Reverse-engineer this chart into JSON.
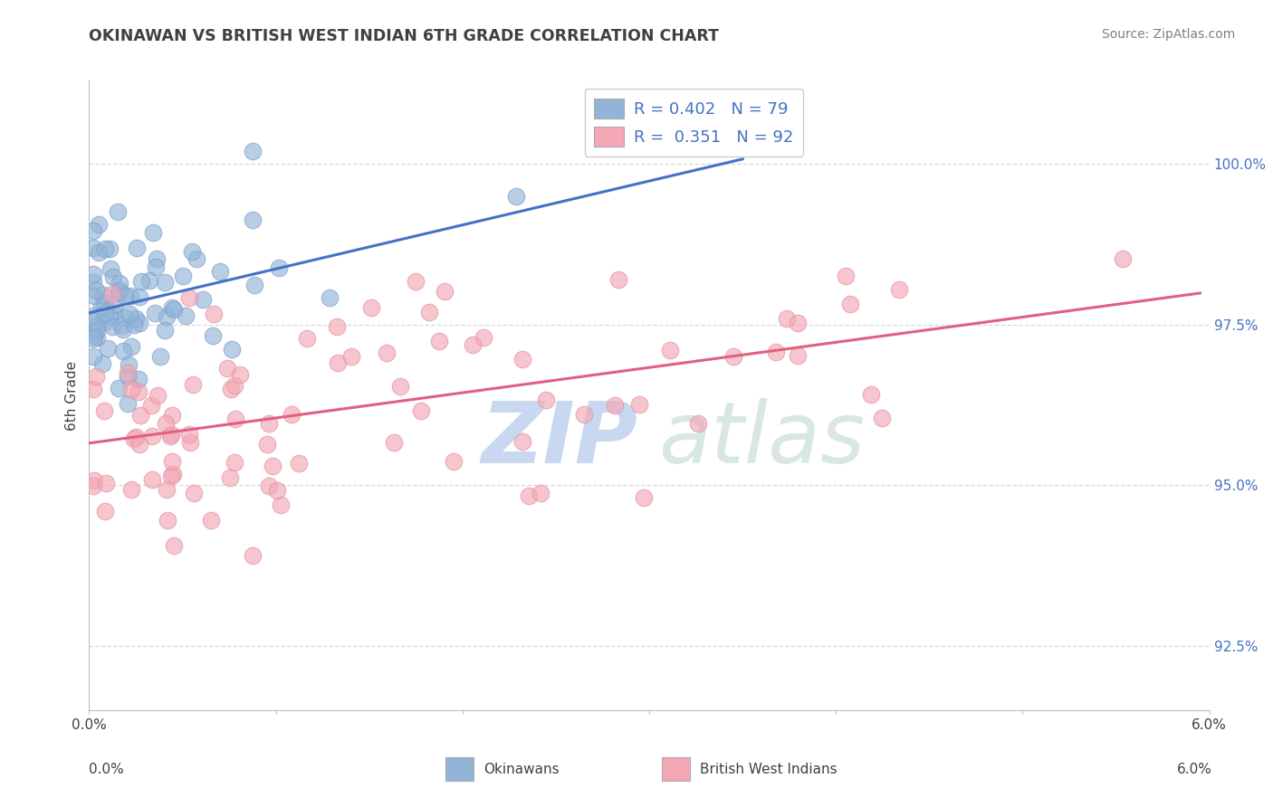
{
  "title": "OKINAWAN VS BRITISH WEST INDIAN 6TH GRADE CORRELATION CHART",
  "source": "Source: ZipAtlas.com",
  "ylabel": "6th Grade",
  "xlim": [
    0.0,
    6.0
  ],
  "ylim": [
    91.5,
    101.3
  ],
  "yticks": [
    92.5,
    95.0,
    97.5,
    100.0
  ],
  "okinawan_R": "0.402",
  "okinawan_N": "79",
  "bwi_R": "0.351",
  "bwi_N": "92",
  "okinawan_color": "#92B4D8",
  "bwi_color": "#F4A7B5",
  "okinawan_edge": "#7A9EC8",
  "bwi_edge": "#E090A0",
  "trend_okinawan_color": "#4472C4",
  "trend_bwi_color": "#E06080",
  "text_color": "#4472C4",
  "title_color": "#404040",
  "source_color": "#808080",
  "grid_color": "#D8D8D8",
  "spine_color": "#C0C0C0",
  "watermark_zip_color": "#C8D8F0",
  "watermark_atlas_color": "#D8E8E0"
}
